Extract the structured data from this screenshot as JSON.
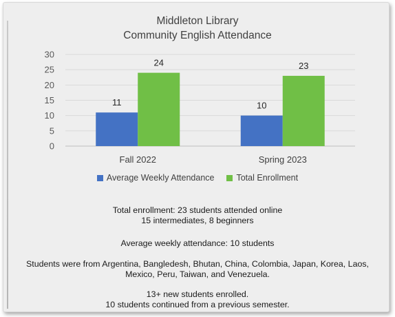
{
  "colors": {
    "series1": "#4472c4",
    "series2": "#70bf46",
    "axis_text": "#595959",
    "grid": "#d9d9d9"
  },
  "chart_data": {
    "type": "bar",
    "title": "Middleton Library",
    "subtitle": "Community English Attendance",
    "categories": [
      "Fall 2022",
      "Spring 2023"
    ],
    "series": [
      {
        "name": "Average Weekly Attendance",
        "values": [
          11,
          10
        ]
      },
      {
        "name": "Total Enrollment",
        "values": [
          24,
          23
        ]
      }
    ],
    "ylim": [
      0,
      30
    ],
    "yticks": [
      0,
      5,
      10,
      15,
      20,
      25,
      30
    ],
    "grid": true,
    "legend": "bottom",
    "data_labels": true
  },
  "notes": {
    "enrollment_line1": "Total enrollment: 23 students attended online",
    "enrollment_line2": "15 intermediates, 8 beginners",
    "attendance": "Average weekly attendance: 10 students",
    "countries_line1": "Students were from Argentina, Bangledesh, Bhutan, China, Colombia, Japan, Korea, Laos,",
    "countries_line2": "Mexico, Peru, Taiwan, and Venezuela.",
    "new_students": "13+ new students enrolled.",
    "continued": "10 students continued from a previous semester."
  }
}
